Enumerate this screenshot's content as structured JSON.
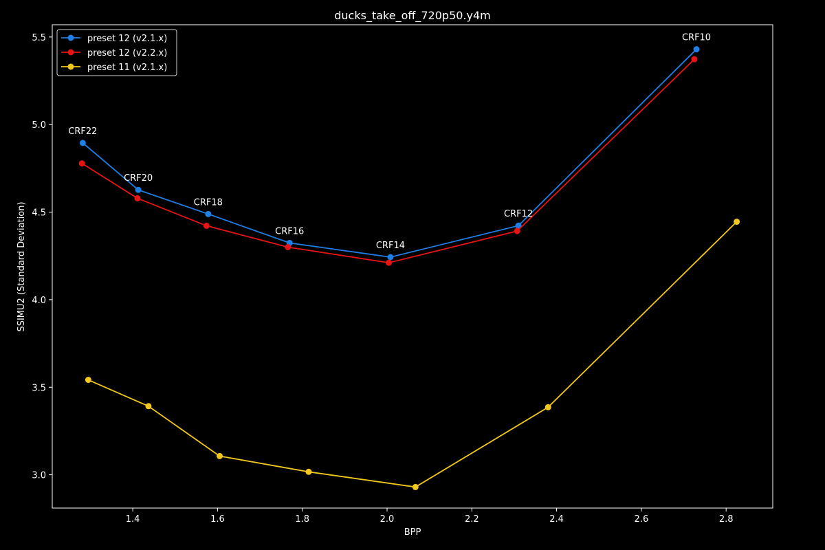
{
  "chart_data": {
    "type": "line",
    "title": "ducks_take_off_720p50.y4m",
    "xlabel": "BPP",
    "ylabel": "SSIMU2 (Standard Deviation)",
    "xlim": [
      1.21,
      2.91
    ],
    "ylim": [
      2.81,
      5.57
    ],
    "xticks": [
      1.4,
      1.6,
      1.8,
      2.0,
      2.2,
      2.4,
      2.6,
      2.8
    ],
    "yticks": [
      3.0,
      3.5,
      4.0,
      4.5,
      5.0,
      5.5
    ],
    "grid": false,
    "legend_position": "top-left",
    "background": "#000000",
    "series": [
      {
        "name": "preset 12 (v2.1.x)",
        "color": "#1e7fe6",
        "points": [
          {
            "x": 1.282,
            "y": 4.895,
            "label": "CRF22"
          },
          {
            "x": 1.413,
            "y": 4.627,
            "label": "CRF20"
          },
          {
            "x": 1.578,
            "y": 4.489,
            "label": "CRF18"
          },
          {
            "x": 1.77,
            "y": 4.324,
            "label": "CRF16"
          },
          {
            "x": 2.008,
            "y": 4.243,
            "label": "CRF14"
          },
          {
            "x": 2.31,
            "y": 4.423,
            "label": "CRF12"
          },
          {
            "x": 2.73,
            "y": 5.43,
            "label": "CRF10"
          }
        ]
      },
      {
        "name": "preset 12 (v2.2.x)",
        "color": "#e61414",
        "points": [
          {
            "x": 1.28,
            "y": 4.778
          },
          {
            "x": 1.411,
            "y": 4.579
          },
          {
            "x": 1.574,
            "y": 4.422
          },
          {
            "x": 1.766,
            "y": 4.3
          },
          {
            "x": 2.004,
            "y": 4.211
          },
          {
            "x": 2.307,
            "y": 4.392
          },
          {
            "x": 2.725,
            "y": 5.373
          }
        ]
      },
      {
        "name": "preset 11 (v2.1.x)",
        "color": "#f2c81c",
        "points": [
          {
            "x": 1.295,
            "y": 3.542
          },
          {
            "x": 1.437,
            "y": 3.392
          },
          {
            "x": 1.605,
            "y": 3.107
          },
          {
            "x": 1.815,
            "y": 3.017
          },
          {
            "x": 2.067,
            "y": 2.93
          },
          {
            "x": 2.38,
            "y": 3.386
          },
          {
            "x": 2.825,
            "y": 4.445
          }
        ]
      }
    ]
  }
}
